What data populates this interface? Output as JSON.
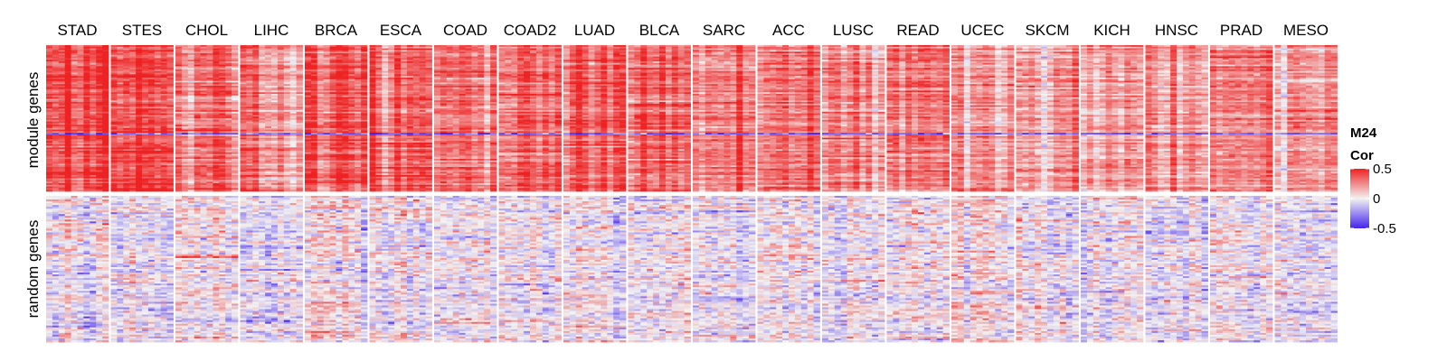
{
  "chart_data": {
    "type": "heatmap",
    "title": "",
    "columns": [
      "STAD",
      "STES",
      "CHOL",
      "LIHC",
      "BRCA",
      "ESCA",
      "COAD",
      "COAD2",
      "LUAD",
      "BLCA",
      "SARC",
      "ACC",
      "LUSC",
      "READ",
      "UCEC",
      "SKCM",
      "KICH",
      "HNSC",
      "PRAD",
      "MESO"
    ],
    "row_groups": [
      "module genes",
      "random genes"
    ],
    "legend": {
      "title_line1": "M24",
      "title_line2": "Cor",
      "ticks": [
        "0.5",
        "0",
        "-0.5"
      ],
      "tick_values": [
        0.5,
        0,
        -0.5
      ],
      "range": [
        -0.5,
        0.5
      ],
      "colors": {
        "high": "#ee2222",
        "mid": "#f2f2f2",
        "low": "#4422ee"
      }
    },
    "module_mean_cor": {
      "STAD": 0.42,
      "STES": 0.4,
      "CHOL": 0.34,
      "LIHC": 0.28,
      "BRCA": 0.38,
      "ESCA": 0.36,
      "COAD": 0.33,
      "COAD2": 0.31,
      "LUAD": 0.3,
      "BLCA": 0.29,
      "SARC": 0.3,
      "ACC": 0.27,
      "LUSC": 0.29,
      "READ": 0.28,
      "UCEC": 0.24,
      "SKCM": 0.23,
      "KICH": 0.21,
      "HNSC": 0.22,
      "PRAD": 0.24,
      "MESO": 0.2
    },
    "random_mean_cor": 0.0
  }
}
